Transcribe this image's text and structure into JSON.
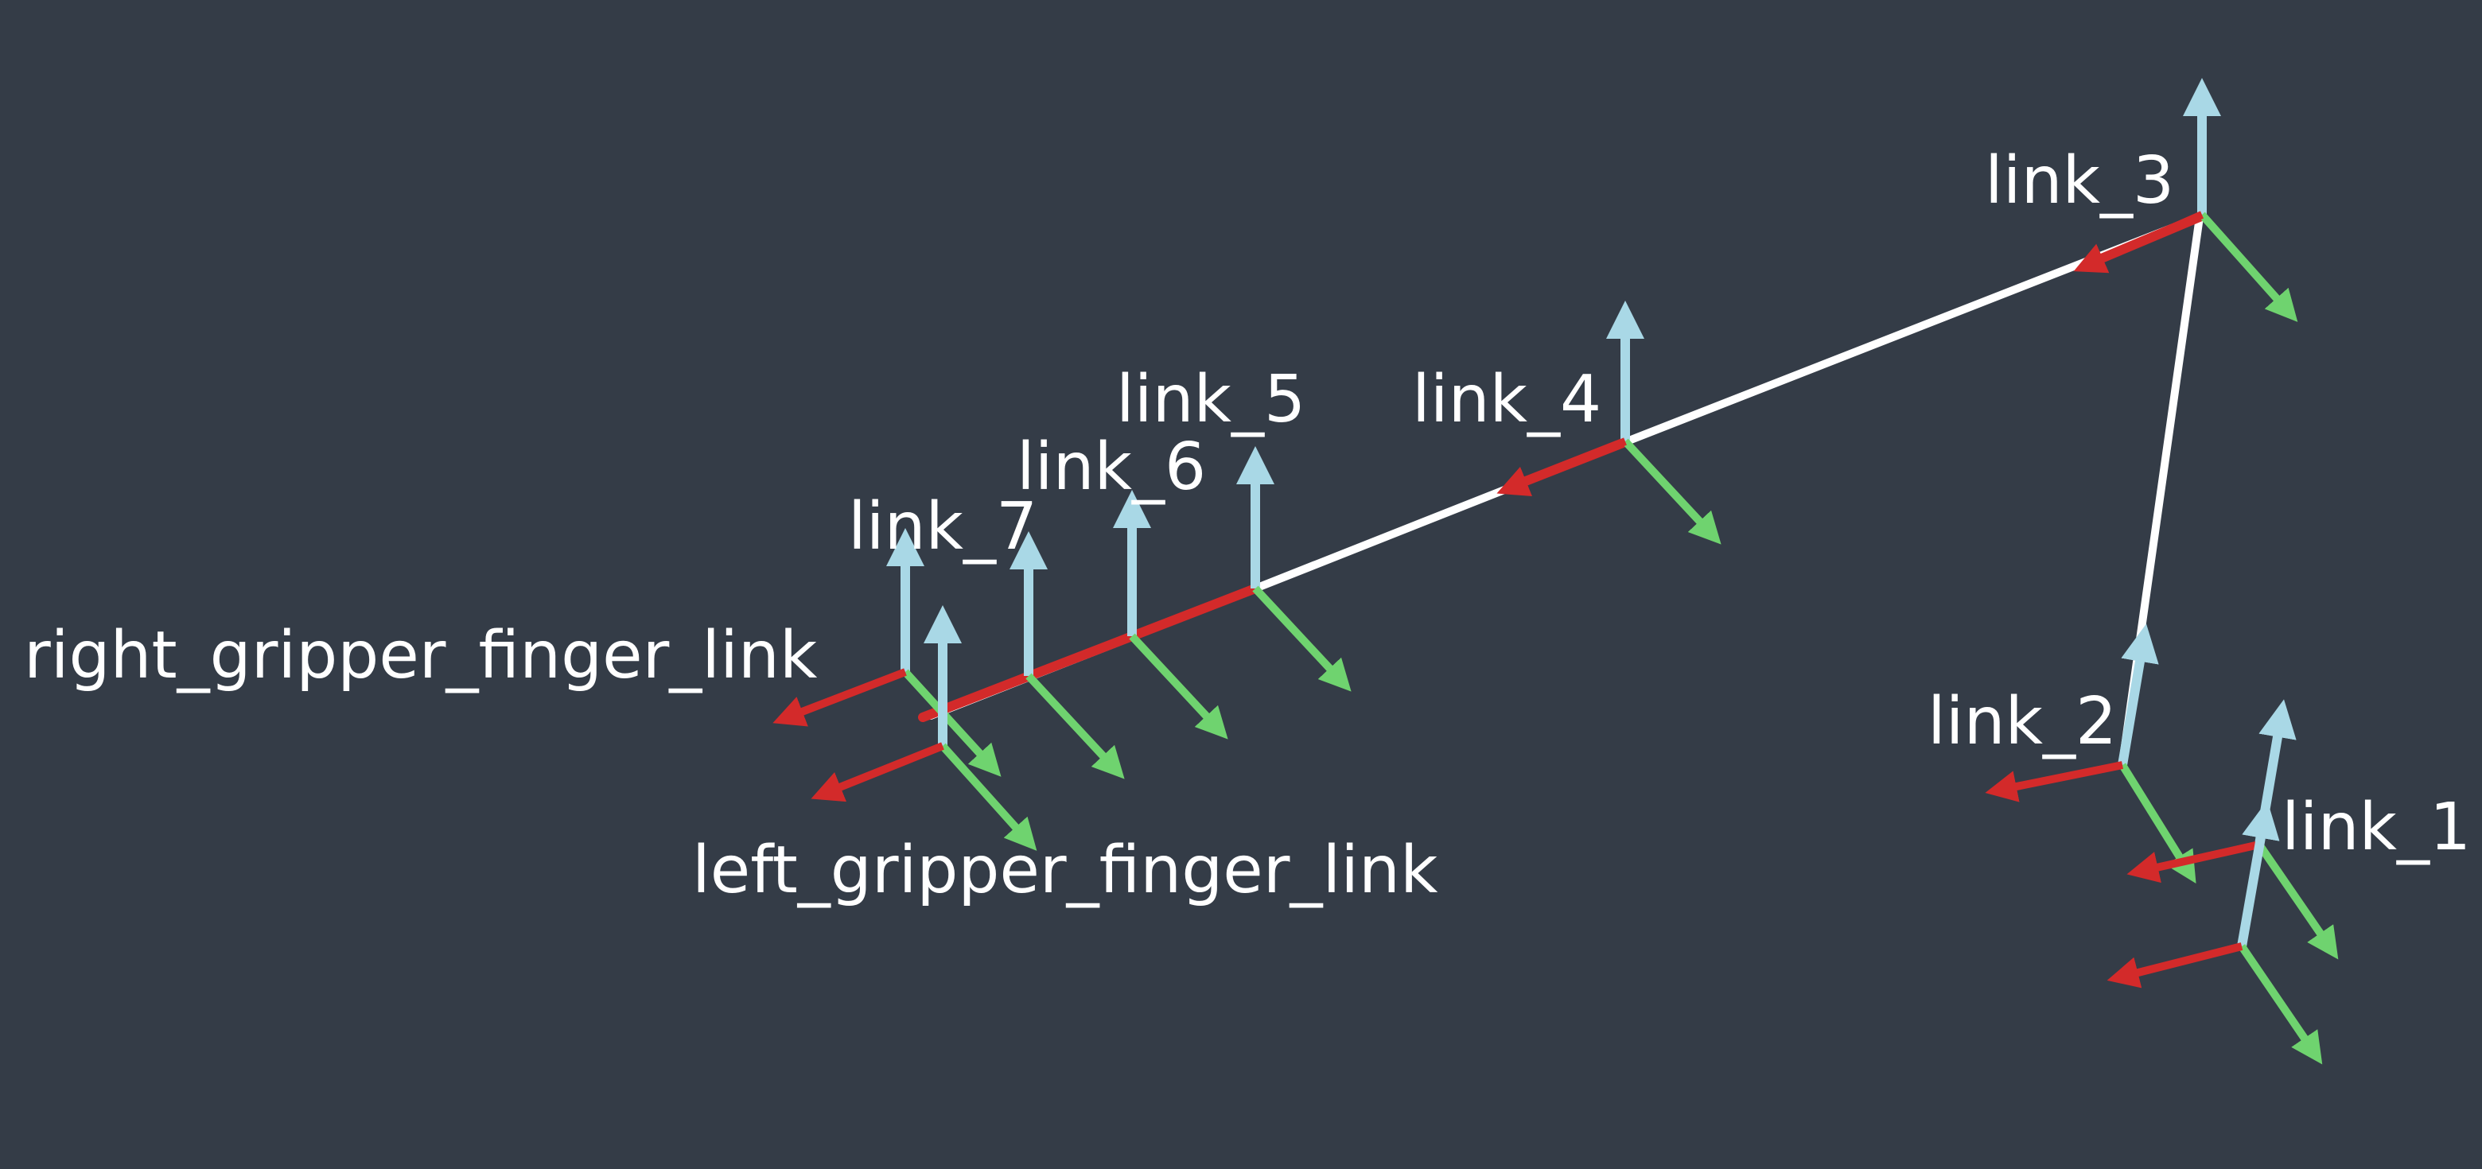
{
  "scene": {
    "background_color": "#343c47",
    "axis_colors": {
      "x_axis": "#d32a2a",
      "y_axis": "#6fd36f",
      "z_axis": "#a9d8e6",
      "link_line": "#ffffff"
    },
    "frames": [
      {
        "id": "link_1",
        "label": "link_1"
      },
      {
        "id": "link_2",
        "label": "link_2"
      },
      {
        "id": "link_3",
        "label": "link_3"
      },
      {
        "id": "link_4",
        "label": "link_4"
      },
      {
        "id": "link_5",
        "label": "link_5"
      },
      {
        "id": "link_6",
        "label": "link_6"
      },
      {
        "id": "link_7",
        "label": "link_7"
      },
      {
        "id": "right_gripper_finger_link",
        "label": "right_gripper_finger_link"
      },
      {
        "id": "left_gripper_finger_link",
        "label": "left_gripper_finger_link"
      }
    ]
  }
}
